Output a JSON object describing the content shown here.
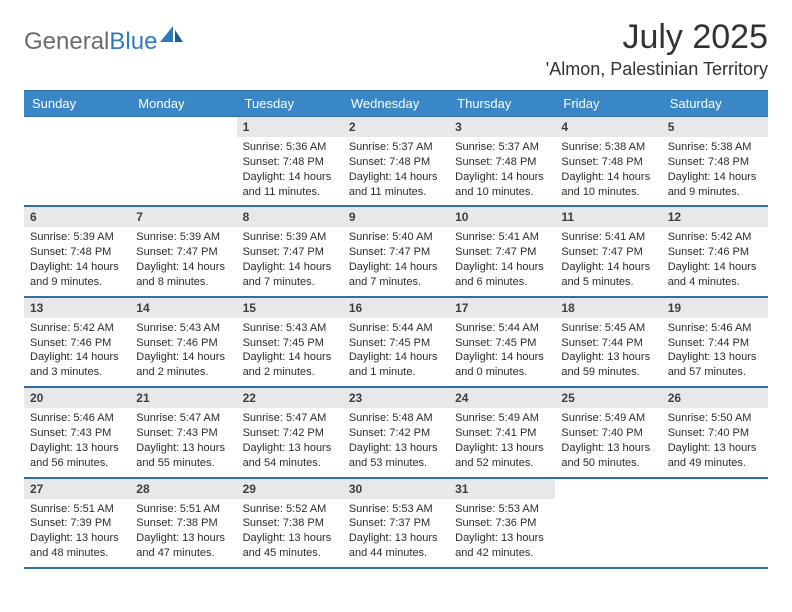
{
  "brand": {
    "name_gray": "General",
    "name_blue": "Blue"
  },
  "title": {
    "month": "July 2025",
    "location": "'Almon, Palestinian Territory"
  },
  "colors": {
    "header_bg": "#3a87c7",
    "header_text": "#ffffff",
    "divider": "#2f6fa3",
    "daynum_bg": "#e6e8ea",
    "body_text": "#2b2b2b",
    "title_text": "#323232",
    "logo_gray": "#6b6b6b",
    "logo_blue": "#2f7abf",
    "page_bg": "#ffffff"
  },
  "typography": {
    "title_fontsize": 34,
    "location_fontsize": 18,
    "weekday_fontsize": 13,
    "daynum_fontsize": 12,
    "body_fontsize": 11
  },
  "weekdays": [
    "Sunday",
    "Monday",
    "Tuesday",
    "Wednesday",
    "Thursday",
    "Friday",
    "Saturday"
  ],
  "weeks": [
    [
      null,
      null,
      {
        "n": "1",
        "sr": "Sunrise: 5:36 AM",
        "ss": "Sunset: 7:48 PM",
        "dl": "Daylight: 14 hours and 11 minutes."
      },
      {
        "n": "2",
        "sr": "Sunrise: 5:37 AM",
        "ss": "Sunset: 7:48 PM",
        "dl": "Daylight: 14 hours and 11 minutes."
      },
      {
        "n": "3",
        "sr": "Sunrise: 5:37 AM",
        "ss": "Sunset: 7:48 PM",
        "dl": "Daylight: 14 hours and 10 minutes."
      },
      {
        "n": "4",
        "sr": "Sunrise: 5:38 AM",
        "ss": "Sunset: 7:48 PM",
        "dl": "Daylight: 14 hours and 10 minutes."
      },
      {
        "n": "5",
        "sr": "Sunrise: 5:38 AM",
        "ss": "Sunset: 7:48 PM",
        "dl": "Daylight: 14 hours and 9 minutes."
      }
    ],
    [
      {
        "n": "6",
        "sr": "Sunrise: 5:39 AM",
        "ss": "Sunset: 7:48 PM",
        "dl": "Daylight: 14 hours and 9 minutes."
      },
      {
        "n": "7",
        "sr": "Sunrise: 5:39 AM",
        "ss": "Sunset: 7:47 PM",
        "dl": "Daylight: 14 hours and 8 minutes."
      },
      {
        "n": "8",
        "sr": "Sunrise: 5:39 AM",
        "ss": "Sunset: 7:47 PM",
        "dl": "Daylight: 14 hours and 7 minutes."
      },
      {
        "n": "9",
        "sr": "Sunrise: 5:40 AM",
        "ss": "Sunset: 7:47 PM",
        "dl": "Daylight: 14 hours and 7 minutes."
      },
      {
        "n": "10",
        "sr": "Sunrise: 5:41 AM",
        "ss": "Sunset: 7:47 PM",
        "dl": "Daylight: 14 hours and 6 minutes."
      },
      {
        "n": "11",
        "sr": "Sunrise: 5:41 AM",
        "ss": "Sunset: 7:47 PM",
        "dl": "Daylight: 14 hours and 5 minutes."
      },
      {
        "n": "12",
        "sr": "Sunrise: 5:42 AM",
        "ss": "Sunset: 7:46 PM",
        "dl": "Daylight: 14 hours and 4 minutes."
      }
    ],
    [
      {
        "n": "13",
        "sr": "Sunrise: 5:42 AM",
        "ss": "Sunset: 7:46 PM",
        "dl": "Daylight: 14 hours and 3 minutes."
      },
      {
        "n": "14",
        "sr": "Sunrise: 5:43 AM",
        "ss": "Sunset: 7:46 PM",
        "dl": "Daylight: 14 hours and 2 minutes."
      },
      {
        "n": "15",
        "sr": "Sunrise: 5:43 AM",
        "ss": "Sunset: 7:45 PM",
        "dl": "Daylight: 14 hours and 2 minutes."
      },
      {
        "n": "16",
        "sr": "Sunrise: 5:44 AM",
        "ss": "Sunset: 7:45 PM",
        "dl": "Daylight: 14 hours and 1 minute."
      },
      {
        "n": "17",
        "sr": "Sunrise: 5:44 AM",
        "ss": "Sunset: 7:45 PM",
        "dl": "Daylight: 14 hours and 0 minutes."
      },
      {
        "n": "18",
        "sr": "Sunrise: 5:45 AM",
        "ss": "Sunset: 7:44 PM",
        "dl": "Daylight: 13 hours and 59 minutes."
      },
      {
        "n": "19",
        "sr": "Sunrise: 5:46 AM",
        "ss": "Sunset: 7:44 PM",
        "dl": "Daylight: 13 hours and 57 minutes."
      }
    ],
    [
      {
        "n": "20",
        "sr": "Sunrise: 5:46 AM",
        "ss": "Sunset: 7:43 PM",
        "dl": "Daylight: 13 hours and 56 minutes."
      },
      {
        "n": "21",
        "sr": "Sunrise: 5:47 AM",
        "ss": "Sunset: 7:43 PM",
        "dl": "Daylight: 13 hours and 55 minutes."
      },
      {
        "n": "22",
        "sr": "Sunrise: 5:47 AM",
        "ss": "Sunset: 7:42 PM",
        "dl": "Daylight: 13 hours and 54 minutes."
      },
      {
        "n": "23",
        "sr": "Sunrise: 5:48 AM",
        "ss": "Sunset: 7:42 PM",
        "dl": "Daylight: 13 hours and 53 minutes."
      },
      {
        "n": "24",
        "sr": "Sunrise: 5:49 AM",
        "ss": "Sunset: 7:41 PM",
        "dl": "Daylight: 13 hours and 52 minutes."
      },
      {
        "n": "25",
        "sr": "Sunrise: 5:49 AM",
        "ss": "Sunset: 7:40 PM",
        "dl": "Daylight: 13 hours and 50 minutes."
      },
      {
        "n": "26",
        "sr": "Sunrise: 5:50 AM",
        "ss": "Sunset: 7:40 PM",
        "dl": "Daylight: 13 hours and 49 minutes."
      }
    ],
    [
      {
        "n": "27",
        "sr": "Sunrise: 5:51 AM",
        "ss": "Sunset: 7:39 PM",
        "dl": "Daylight: 13 hours and 48 minutes."
      },
      {
        "n": "28",
        "sr": "Sunrise: 5:51 AM",
        "ss": "Sunset: 7:38 PM",
        "dl": "Daylight: 13 hours and 47 minutes."
      },
      {
        "n": "29",
        "sr": "Sunrise: 5:52 AM",
        "ss": "Sunset: 7:38 PM",
        "dl": "Daylight: 13 hours and 45 minutes."
      },
      {
        "n": "30",
        "sr": "Sunrise: 5:53 AM",
        "ss": "Sunset: 7:37 PM",
        "dl": "Daylight: 13 hours and 44 minutes."
      },
      {
        "n": "31",
        "sr": "Sunrise: 5:53 AM",
        "ss": "Sunset: 7:36 PM",
        "dl": "Daylight: 13 hours and 42 minutes."
      },
      null,
      null
    ]
  ]
}
